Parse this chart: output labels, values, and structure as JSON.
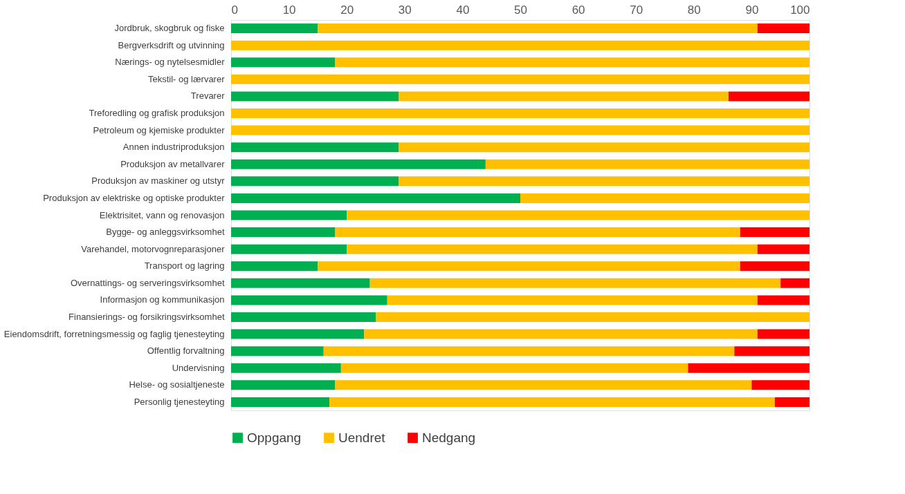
{
  "chart_data": {
    "type": "bar",
    "orientation": "horizontal",
    "stacked": true,
    "categories": [
      "Jordbruk, skogbruk og fiske",
      "Bergverksdrift og utvinning",
      "Nærings- og nytelsesmidler",
      "Tekstil- og lærvarer",
      "Trevarer",
      "Treforedling og grafisk produksjon",
      "Petroleum og kjemiske produkter",
      "Annen industriproduksjon",
      "Produksjon av metallvarer",
      "Produksjon av maskiner og utstyr",
      "Produksjon av elektriske og optiske produkter",
      "Elektrisitet, vann og renovasjon",
      "Bygge- og anleggsvirksomhet",
      "Varehandel, motorvognreparasjoner",
      "Transport og lagring",
      "Overnattings- og serveringsvirksomhet",
      "Informasjon og kommunikasjon",
      "Finansierings- og forsikringsvirksomhet",
      "Eiendomsdrift, forretningsmessig og faglig tjenesteyting",
      "Offentlig forvaltning",
      "Undervisning",
      "Helse- og sosialtjeneste",
      "Personlig tjenesteyting"
    ],
    "series": [
      {
        "name": "Oppgang",
        "color": "#00b050",
        "values": [
          15,
          0,
          18,
          0,
          29,
          0,
          0,
          29,
          44,
          29,
          50,
          20,
          18,
          20,
          15,
          24,
          27,
          25,
          23,
          16,
          19,
          18,
          17
        ]
      },
      {
        "name": "Uendret",
        "color": "#ffc000",
        "values": [
          76,
          100,
          82,
          100,
          57,
          100,
          100,
          71,
          56,
          71,
          50,
          80,
          70,
          71,
          73,
          71,
          64,
          75,
          68,
          71,
          60,
          72,
          77
        ]
      },
      {
        "name": "Nedgang",
        "color": "#ff0000",
        "values": [
          9,
          0,
          0,
          0,
          14,
          0,
          0,
          0,
          0,
          0,
          0,
          0,
          12,
          9,
          12,
          5,
          9,
          0,
          9,
          13,
          21,
          10,
          6
        ]
      }
    ],
    "xlim": [
      0,
      100
    ],
    "xticks": [
      0,
      10,
      20,
      30,
      40,
      50,
      60,
      70,
      80,
      90,
      100
    ],
    "grid": false,
    "legend": "bottom"
  }
}
